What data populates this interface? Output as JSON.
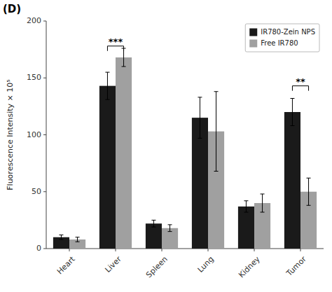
{
  "chart_data": {
    "type": "bar",
    "categories": [
      "Heart",
      "Liver",
      "Spleen",
      "Lung",
      "Kidney",
      "Tumor"
    ],
    "series": [
      {
        "name": "IR780-Zein NPS",
        "color": "#1a1a1a",
        "values": [
          10,
          143,
          22,
          115,
          37,
          120
        ],
        "errors": [
          2,
          12,
          3,
          18,
          5,
          12
        ]
      },
      {
        "name": "Free IR780",
        "color": "#a0a0a0",
        "values": [
          8,
          168,
          18,
          103,
          40,
          50
        ],
        "errors": [
          2,
          8,
          3,
          35,
          8,
          12
        ]
      }
    ],
    "ylabel": "Fluorescence Intensity × 10⁵",
    "ylim": [
      0,
      200
    ],
    "yticks": [
      0,
      50,
      100,
      150,
      200
    ],
    "grid": false,
    "legend": "upper right",
    "annotations": [
      {
        "text": "***",
        "category": "Liver",
        "y": 178
      },
      {
        "text": "**",
        "category": "Tumor",
        "y": 143
      }
    ],
    "panel_label": "(D)"
  }
}
